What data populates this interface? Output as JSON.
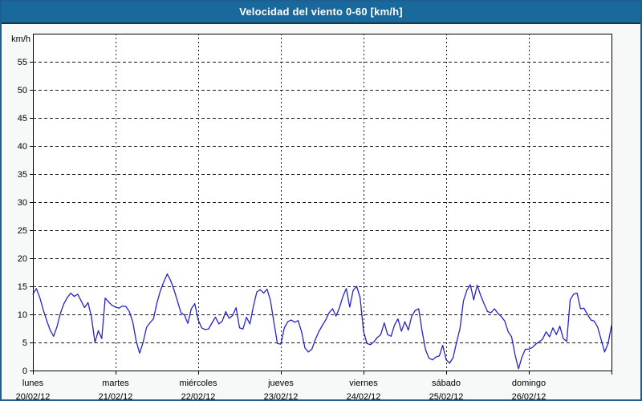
{
  "window": {
    "title": "Velocidad del viento 0-60 [km/h]"
  },
  "colors": {
    "titlebar_bg": "#19699c",
    "titlebar_edge": "#0e3a5a",
    "frame_border": "#1e5f93",
    "panel_bg": "#f6f9f8",
    "plot_bg": "#ffffff",
    "axis": "#000000",
    "grid": "#1a1a1a",
    "line": "#2424c8",
    "label_text": "#000000",
    "title_text": "#ffffff"
  },
  "y_axis": {
    "unit_label": "km/h",
    "tick_values": [
      55,
      50,
      45,
      40,
      35,
      30,
      25,
      20,
      15,
      10,
      5
    ],
    "zero_label": "0",
    "min": 0,
    "max": 60,
    "step": 5
  },
  "x_axis": {
    "days": [
      {
        "weekday": "lunes",
        "date": "20/02/12"
      },
      {
        "weekday": "martes",
        "date": "21/02/12"
      },
      {
        "weekday": "miércoles",
        "date": "22/02/12"
      },
      {
        "weekday": "jueves",
        "date": "23/02/12"
      },
      {
        "weekday": "viernes",
        "date": "24/02/12"
      },
      {
        "weekday": "sábado",
        "date": "25/02/12"
      },
      {
        "weekday": "domingo",
        "date": "26/02/12"
      }
    ]
  },
  "chart_data": {
    "type": "line",
    "title": "Velocidad del viento 0-60 [km/h]",
    "ylabel": "km/h",
    "ylim": [
      0,
      60
    ],
    "grid": "dashed",
    "legend_position": "none",
    "x_description": "hourly samples, 7 days (lunes 20/02/12 00:00 to domingo 26/02/12 24:00)",
    "x_step_hours": 1,
    "series": [
      {
        "name": "Velocidad del viento",
        "color": "#2424c8",
        "values": [
          13.6,
          14.6,
          13.0,
          10.8,
          8.9,
          7.2,
          6.1,
          7.8,
          10.2,
          11.9,
          13.0,
          13.8,
          13.2,
          13.6,
          12.4,
          11.2,
          12.1,
          9.5,
          5.0,
          7.1,
          5.7,
          12.9,
          12.2,
          11.6,
          11.3,
          11.1,
          11.5,
          11.4,
          10.5,
          8.6,
          5.2,
          3.1,
          5.0,
          7.7,
          8.5,
          9.2,
          12.0,
          14.2,
          15.8,
          17.2,
          16.0,
          14.3,
          12.3,
          10.3,
          9.9,
          8.4,
          11.0,
          11.9,
          9.0,
          7.6,
          7.3,
          7.4,
          8.5,
          9.5,
          8.3,
          8.8,
          10.5,
          9.3,
          9.8,
          11.2,
          7.6,
          7.4,
          9.5,
          8.3,
          11.4,
          14.0,
          14.4,
          13.8,
          14.5,
          12.4,
          8.5,
          4.8,
          4.7,
          7.6,
          8.7,
          9.0,
          8.6,
          8.9,
          6.9,
          4.0,
          3.3,
          3.8,
          5.5,
          6.9,
          8.0,
          9.0,
          10.3,
          11.0,
          9.7,
          11.2,
          13.2,
          14.6,
          11.3,
          14.3,
          15.0,
          13.0,
          7.0,
          4.8,
          4.6,
          5.1,
          5.9,
          6.4,
          8.5,
          6.4,
          6.1,
          8.1,
          9.2,
          7.0,
          8.7,
          7.2,
          9.7,
          10.7,
          11.0,
          7.0,
          3.7,
          2.2,
          1.9,
          2.4,
          2.6,
          4.5,
          1.9,
          1.3,
          2.3,
          5.0,
          7.5,
          12.4,
          14.3,
          15.3,
          12.6,
          15.2,
          13.4,
          11.9,
          10.5,
          10.3,
          11.0,
          10.2,
          9.6,
          8.8,
          6.9,
          6.0,
          2.8,
          0.3,
          2.4,
          3.8,
          3.8,
          4.1,
          4.7,
          5.1,
          5.6,
          6.9,
          6.0,
          7.6,
          6.4,
          7.9,
          5.7,
          5.2,
          12.6,
          13.6,
          13.8,
          11.0,
          11.1,
          10.0,
          9.0,
          8.8,
          7.7,
          5.5,
          3.3,
          4.8,
          8.0
        ]
      }
    ]
  }
}
